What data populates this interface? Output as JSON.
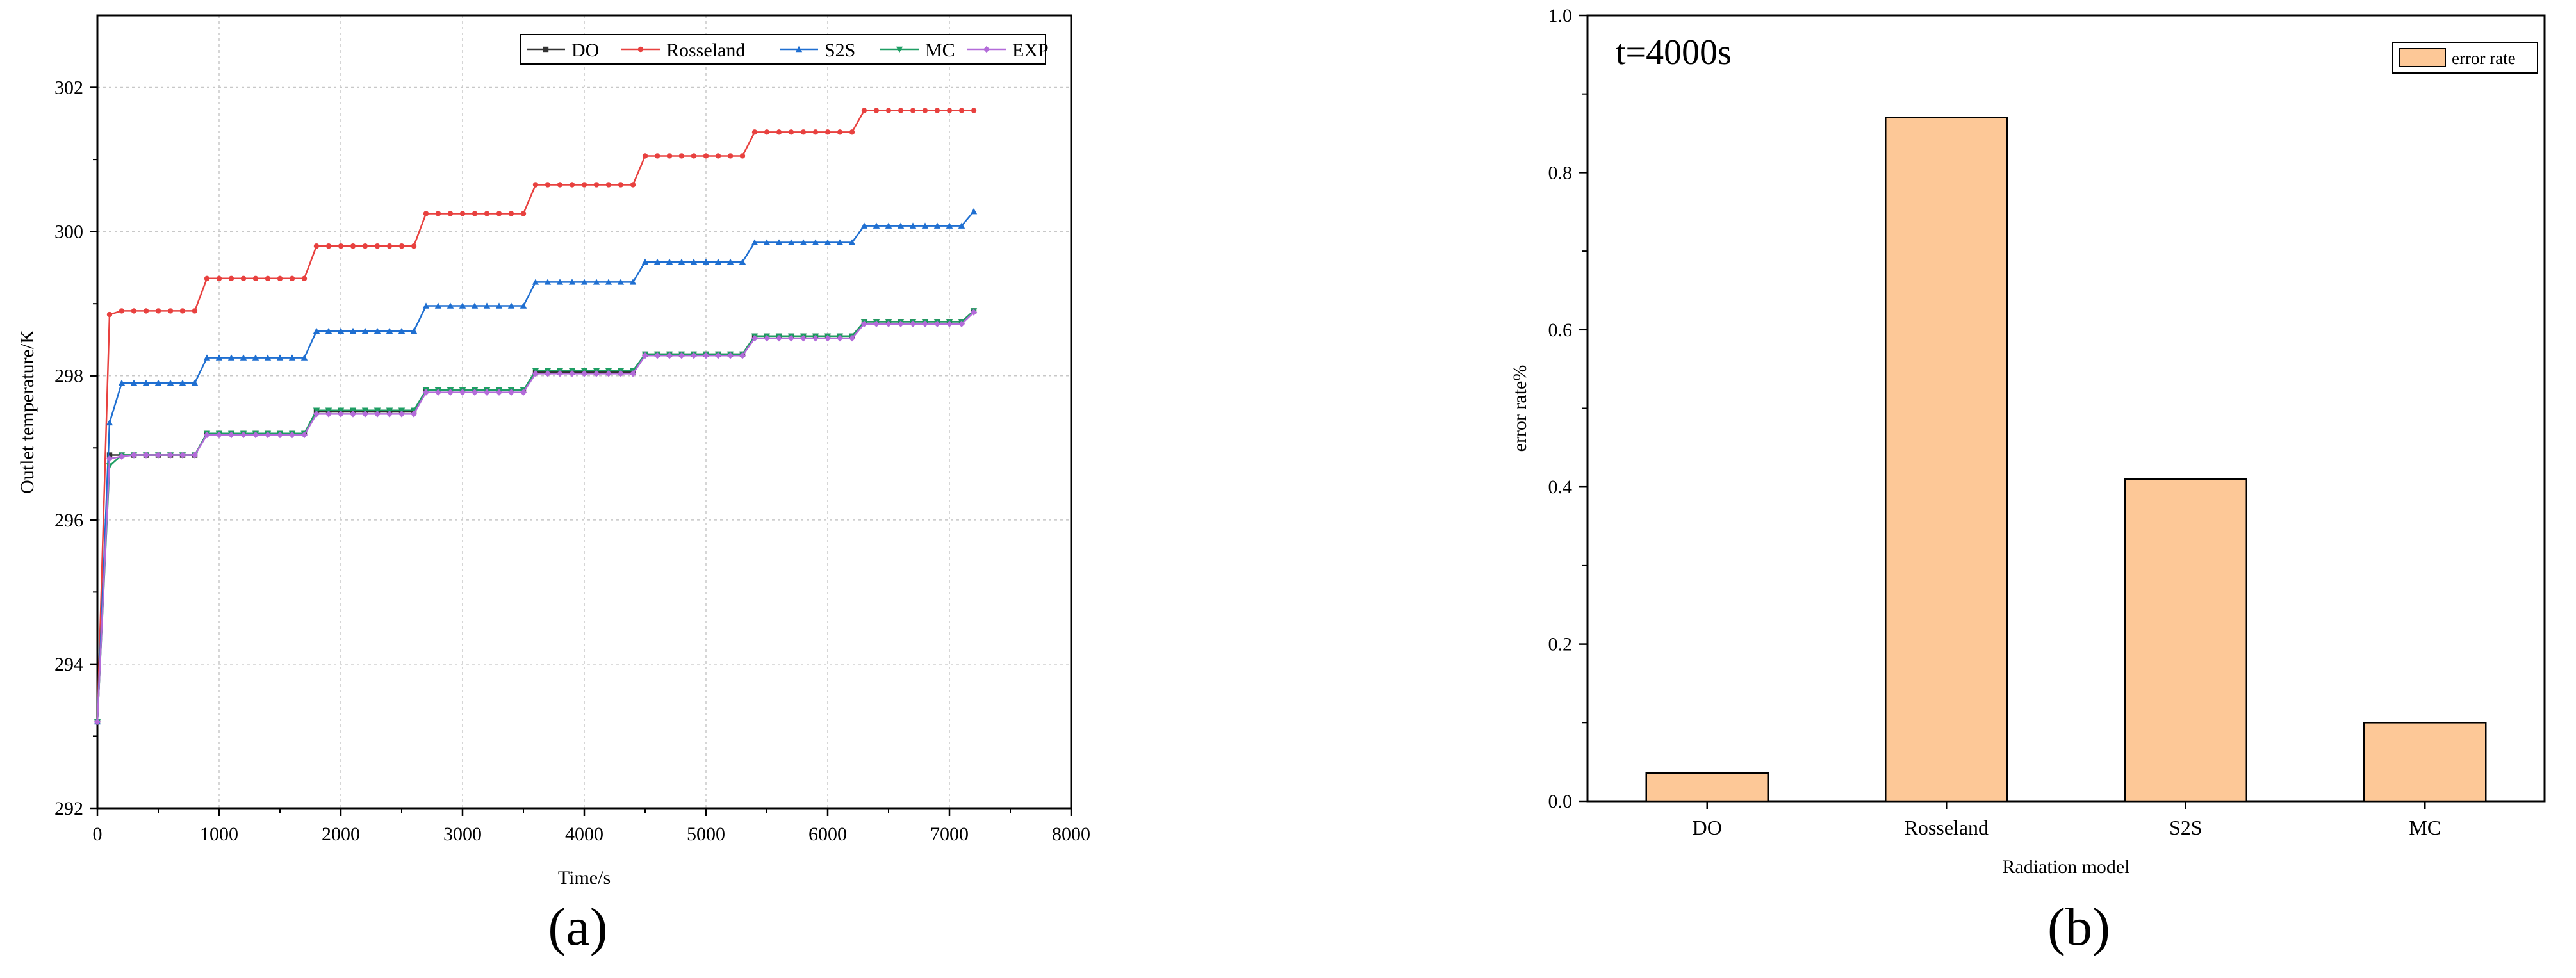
{
  "panels": {
    "a_label": "(a)",
    "b_label": "(b)"
  },
  "chart_data": [
    {
      "type": "line",
      "panel": "(a)",
      "xlabel": "Time/s",
      "ylabel": "Outlet temperature/K",
      "xlim": [
        0,
        8000
      ],
      "ylim": [
        292,
        303
      ],
      "xticks": [
        0,
        1000,
        2000,
        3000,
        4000,
        5000,
        6000,
        7000,
        8000
      ],
      "yticks": [
        292,
        294,
        296,
        298,
        300,
        302
      ],
      "grid": true,
      "legend_position": "top-right",
      "steps": {
        "x": [
          0,
          100,
          200,
          300,
          400,
          500,
          600,
          700,
          800,
          900,
          1000,
          1100,
          1200,
          1300,
          1400,
          1500,
          1600,
          1700,
          1800,
          1900,
          2000,
          2100,
          2200,
          2300,
          2400,
          2500,
          2600,
          2700,
          2800,
          2900,
          3000,
          3100,
          3200,
          3300,
          3400,
          3500,
          3600,
          3700,
          3800,
          3900,
          4000,
          4100,
          4200,
          4300,
          4400,
          4500,
          4600,
          4700,
          4800,
          4900,
          5000,
          5100,
          5200,
          5300,
          5400,
          5500,
          5600,
          5700,
          5800,
          5900,
          6000,
          6100,
          6200,
          6300,
          6400,
          6500,
          6600,
          6700,
          6800,
          6900,
          7000,
          7100,
          7200
        ]
      },
      "series": [
        {
          "name": "DO",
          "color": "#333333",
          "marker": "square",
          "values": [
            293.2,
            296.9,
            296.9,
            296.9,
            296.9,
            296.9,
            296.9,
            296.9,
            296.9,
            297.2,
            297.2,
            297.2,
            297.2,
            297.2,
            297.2,
            297.2,
            297.2,
            297.2,
            297.5,
            297.5,
            297.5,
            297.5,
            297.5,
            297.5,
            297.5,
            297.5,
            297.5,
            297.8,
            297.8,
            297.8,
            297.8,
            297.8,
            297.8,
            297.8,
            297.8,
            297.8,
            298.05,
            298.05,
            298.05,
            298.05,
            298.05,
            298.05,
            298.05,
            298.05,
            298.05,
            298.3,
            298.3,
            298.3,
            298.3,
            298.3,
            298.3,
            298.3,
            298.3,
            298.3,
            298.55,
            298.55,
            298.55,
            298.55,
            298.55,
            298.55,
            298.55,
            298.55,
            298.55,
            298.75,
            298.75,
            298.75,
            298.75,
            298.75,
            298.75,
            298.75,
            298.75,
            298.75,
            298.9
          ]
        },
        {
          "name": "Rosseland",
          "color": "#e8413f",
          "marker": "circle",
          "values": [
            293.2,
            298.85,
            298.9,
            298.9,
            298.9,
            298.9,
            298.9,
            298.9,
            298.9,
            299.35,
            299.35,
            299.35,
            299.35,
            299.35,
            299.35,
            299.35,
            299.35,
            299.35,
            299.8,
            299.8,
            299.8,
            299.8,
            299.8,
            299.8,
            299.8,
            299.8,
            299.8,
            300.25,
            300.25,
            300.25,
            300.25,
            300.25,
            300.25,
            300.25,
            300.25,
            300.25,
            300.65,
            300.65,
            300.65,
            300.65,
            300.65,
            300.65,
            300.65,
            300.65,
            300.65,
            301.05,
            301.05,
            301.05,
            301.05,
            301.05,
            301.05,
            301.05,
            301.05,
            301.05,
            301.38,
            301.38,
            301.38,
            301.38,
            301.38,
            301.38,
            301.38,
            301.38,
            301.38,
            301.68,
            301.68,
            301.68,
            301.68,
            301.68,
            301.68,
            301.68,
            301.68,
            301.68,
            301.68
          ]
        },
        {
          "name": "S2S",
          "color": "#1f6fd1",
          "marker": "triangle",
          "values": [
            293.2,
            297.35,
            297.9,
            297.9,
            297.9,
            297.9,
            297.9,
            297.9,
            297.9,
            298.25,
            298.25,
            298.25,
            298.25,
            298.25,
            298.25,
            298.25,
            298.25,
            298.25,
            298.62,
            298.62,
            298.62,
            298.62,
            298.62,
            298.62,
            298.62,
            298.62,
            298.62,
            298.97,
            298.97,
            298.97,
            298.97,
            298.97,
            298.97,
            298.97,
            298.97,
            298.97,
            299.3,
            299.3,
            299.3,
            299.3,
            299.3,
            299.3,
            299.3,
            299.3,
            299.3,
            299.58,
            299.58,
            299.58,
            299.58,
            299.58,
            299.58,
            299.58,
            299.58,
            299.58,
            299.85,
            299.85,
            299.85,
            299.85,
            299.85,
            299.85,
            299.85,
            299.85,
            299.85,
            300.08,
            300.08,
            300.08,
            300.08,
            300.08,
            300.08,
            300.08,
            300.08,
            300.08,
            300.28
          ]
        },
        {
          "name": "MC",
          "color": "#1e9e63",
          "marker": "triangle-down",
          "values": [
            293.2,
            296.75,
            296.9,
            296.9,
            296.9,
            296.9,
            296.9,
            296.9,
            296.9,
            297.2,
            297.2,
            297.2,
            297.2,
            297.2,
            297.2,
            297.2,
            297.2,
            297.2,
            297.52,
            297.52,
            297.52,
            297.52,
            297.52,
            297.52,
            297.52,
            297.52,
            297.52,
            297.8,
            297.8,
            297.8,
            297.8,
            297.8,
            297.8,
            297.8,
            297.8,
            297.8,
            298.07,
            298.07,
            298.07,
            298.07,
            298.07,
            298.07,
            298.07,
            298.07,
            298.07,
            298.3,
            298.3,
            298.3,
            298.3,
            298.3,
            298.3,
            298.3,
            298.3,
            298.3,
            298.55,
            298.55,
            298.55,
            298.55,
            298.55,
            298.55,
            298.55,
            298.55,
            298.55,
            298.75,
            298.75,
            298.75,
            298.75,
            298.75,
            298.75,
            298.75,
            298.75,
            298.75,
            298.9
          ]
        },
        {
          "name": "EXP",
          "color": "#b36bd9",
          "marker": "diamond",
          "values": [
            293.2,
            296.85,
            296.88,
            296.9,
            296.9,
            296.9,
            296.9,
            296.9,
            296.9,
            297.18,
            297.18,
            297.18,
            297.18,
            297.18,
            297.18,
            297.18,
            297.18,
            297.18,
            297.47,
            297.47,
            297.47,
            297.47,
            297.47,
            297.47,
            297.47,
            297.47,
            297.47,
            297.77,
            297.77,
            297.77,
            297.77,
            297.77,
            297.77,
            297.77,
            297.77,
            297.77,
            298.03,
            298.03,
            298.03,
            298.03,
            298.03,
            298.03,
            298.03,
            298.03,
            298.03,
            298.28,
            298.28,
            298.28,
            298.28,
            298.28,
            298.28,
            298.28,
            298.28,
            298.28,
            298.52,
            298.52,
            298.52,
            298.52,
            298.52,
            298.52,
            298.52,
            298.52,
            298.52,
            298.72,
            298.72,
            298.72,
            298.72,
            298.72,
            298.72,
            298.72,
            298.72,
            298.72,
            298.88
          ]
        }
      ]
    },
    {
      "type": "bar",
      "panel": "(b)",
      "annotation": "t=4000s",
      "xlabel": "Radiation model",
      "ylabel": "error rate%",
      "ylim": [
        0,
        1.0
      ],
      "yticks": [
        0.0,
        0.2,
        0.4,
        0.6,
        0.8,
        1.0
      ],
      "categories": [
        "DO",
        "Rosseland",
        "S2S",
        "MC"
      ],
      "series": [
        {
          "name": "error rate",
          "color": "#fdc897",
          "values": [
            0.036,
            0.87,
            0.41,
            0.1
          ]
        }
      ],
      "legend_position": "top-right"
    }
  ]
}
